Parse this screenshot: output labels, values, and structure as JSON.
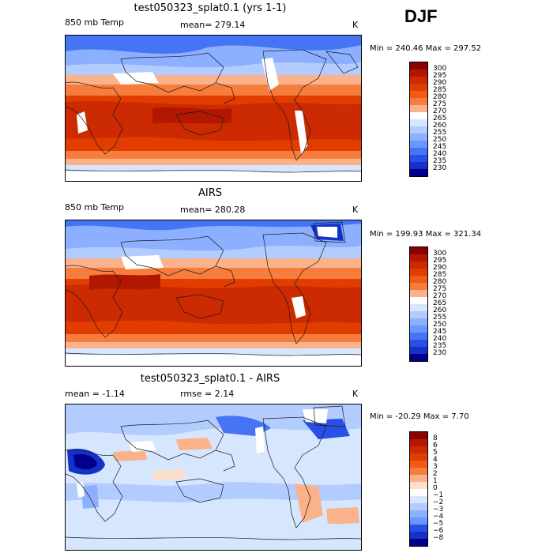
{
  "season": "DJF",
  "panels": [
    {
      "title": "test050323_splat0.1 (yrs 1-1)",
      "left_label": "850 mb Temp",
      "center_label": "mean= 279.14",
      "units": "K",
      "minmax": "Min = 240.46  Max = 297.52",
      "levels": [
        "300",
        "295",
        "290",
        "285",
        "280",
        "275",
        "270",
        "265",
        "260",
        "255",
        "250",
        "245",
        "240",
        "235",
        "230"
      ],
      "colors": [
        "#8b0000",
        "#b21800",
        "#cc2a00",
        "#e23d00",
        "#f05a14",
        "#f77d3c",
        "#fbb28a",
        "#ffffff",
        "#d7e6ff",
        "#b3ccff",
        "#8cb0ff",
        "#6a96ff",
        "#4575f5",
        "#2850e6",
        "#1432c8",
        "#00008b"
      ]
    },
    {
      "title": "AIRS",
      "left_label": "850 mb Temp",
      "center_label": "mean= 280.28",
      "units": "K",
      "minmax": "Min = 199.93  Max = 321.34",
      "levels": [
        "300",
        "295",
        "290",
        "285",
        "280",
        "275",
        "270",
        "265",
        "260",
        "255",
        "250",
        "245",
        "240",
        "235",
        "230"
      ],
      "colors": [
        "#8b0000",
        "#b21800",
        "#cc2a00",
        "#e23d00",
        "#f05a14",
        "#f77d3c",
        "#fbb28a",
        "#ffffff",
        "#d7e6ff",
        "#b3ccff",
        "#8cb0ff",
        "#6a96ff",
        "#4575f5",
        "#2850e6",
        "#1432c8",
        "#00008b"
      ]
    },
    {
      "title": "test050323_splat0.1 - AIRS",
      "left_label": "mean =   -1.14",
      "center_label": "rmse =    2.14",
      "units": "K",
      "minmax": "Min = -20.29  Max =    7.70",
      "levels": [
        "8",
        "6",
        "5",
        "4",
        "3",
        "2",
        "1",
        "0",
        "−1",
        "−2",
        "−3",
        "−4",
        "−5",
        "−6",
        "−8"
      ],
      "colors": [
        "#8b0000",
        "#b21800",
        "#cc2a00",
        "#e23d00",
        "#f05a14",
        "#f77d3c",
        "#fbb28a",
        "#fde0cc",
        "#ffffff",
        "#d7e6ff",
        "#b3ccff",
        "#8cb0ff",
        "#6a96ff",
        "#2850e6",
        "#1432c8",
        "#00008b"
      ]
    }
  ]
}
